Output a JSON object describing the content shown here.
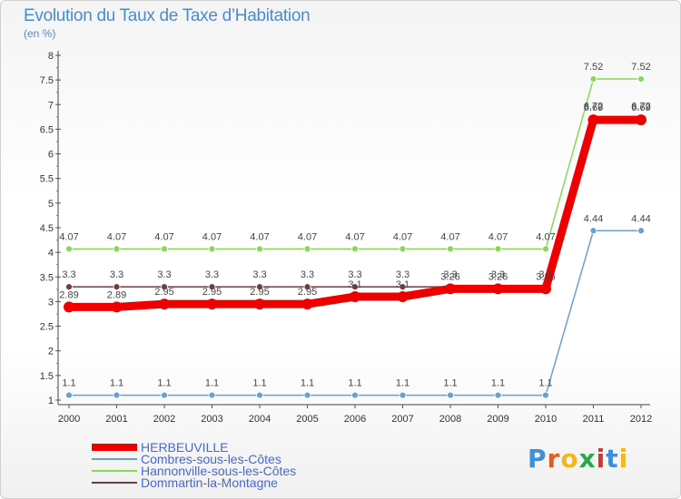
{
  "title": "Evolution du Taux de Taxe d’Habitation",
  "subtitle": "(en %)",
  "logo": {
    "text": "Proxiti",
    "colors": [
      "#3d8fd6",
      "#e85a1e",
      "#f0b81d",
      "#2aa84a",
      "#d9342b",
      "#3d8fd6",
      "#f0b81d"
    ]
  },
  "chart_data": {
    "type": "line",
    "title": "Evolution du Taux de Taxe d’Habitation",
    "ylabel": "(en %)",
    "xlabel": "",
    "categories": [
      "2000",
      "2001",
      "2002",
      "2003",
      "2004",
      "2005",
      "2006",
      "2007",
      "2008",
      "2009",
      "2010",
      "2011",
      "2012"
    ],
    "ylim": [
      1,
      8
    ],
    "yticks": [
      "1",
      "1.5",
      "2",
      "2.5",
      "3",
      "3.5",
      "4",
      "4.5",
      "5",
      "5.5",
      "6",
      "6.5",
      "7",
      "7.5",
      "8"
    ],
    "grid": false,
    "legend_position": "bottom-left",
    "series": [
      {
        "name": "HERBEUVILLE",
        "color": "#ee0000",
        "thick": true,
        "values": [
          2.89,
          2.89,
          2.95,
          2.95,
          2.95,
          2.95,
          3.1,
          3.1,
          3.26,
          3.26,
          3.26,
          6.69,
          6.69
        ],
        "labels": [
          "2.89",
          "2.89",
          "2.95",
          "2.95",
          "2.95",
          "2.95",
          "3.1",
          "3.1",
          "3.26",
          "3.26",
          "3.26",
          "6.69",
          "6.69"
        ]
      },
      {
        "name": "Combres-sous-les-Côtes",
        "color": "#6a9fd4",
        "thick": false,
        "values": [
          1.1,
          1.1,
          1.1,
          1.1,
          1.1,
          1.1,
          1.1,
          1.1,
          1.1,
          1.1,
          1.1,
          4.44,
          4.44
        ],
        "labels": [
          "1.1",
          "1.1",
          "1.1",
          "1.1",
          "1.1",
          "1.1",
          "1.1",
          "1.1",
          "1.1",
          "1.1",
          "1.1",
          "4.44",
          "4.44"
        ]
      },
      {
        "name": "Hannonville-sous-les-Côtes",
        "color": "#88d65a",
        "thick": false,
        "values": [
          4.07,
          4.07,
          4.07,
          4.07,
          4.07,
          4.07,
          4.07,
          4.07,
          4.07,
          4.07,
          4.07,
          7.52,
          7.52
        ],
        "labels": [
          "4.07",
          "4.07",
          "4.07",
          "4.07",
          "4.07",
          "4.07",
          "4.07",
          "4.07",
          "4.07",
          "4.07",
          "4.07",
          "7.52",
          "7.52"
        ]
      },
      {
        "name": "Dommartin-la-Montagne",
        "color": "#7a3a3a",
        "thick": false,
        "values": [
          3.3,
          3.3,
          3.3,
          3.3,
          3.3,
          3.3,
          3.3,
          3.3,
          3.3,
          3.3,
          3.3,
          6.72,
          6.72
        ],
        "labels": [
          "3.3",
          "3.3",
          "3.3",
          "3.3",
          "3.3",
          "3.3",
          "3.3",
          "3.3",
          "3.3",
          "3.3",
          "3.3",
          "6.72",
          "6.72"
        ]
      }
    ]
  }
}
